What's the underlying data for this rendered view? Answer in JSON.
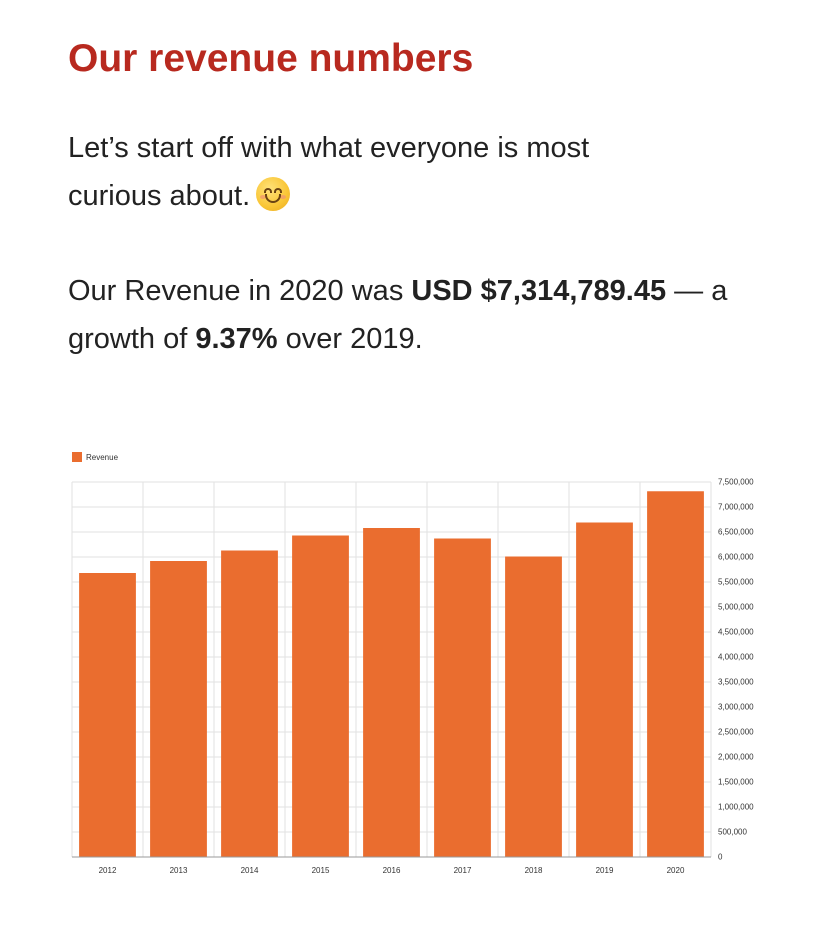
{
  "heading": "Our revenue numbers",
  "intro": {
    "text": "Let’s start off with what everyone is most curious about.",
    "emoji": "smiling-face-icon"
  },
  "summary": {
    "part1": "Our Revenue in 2020 was ",
    "amount": "USD $7,314,789.45",
    "part2": " — a growth of ",
    "growth": "9.37%",
    "part3": " over 2019."
  },
  "colors": {
    "heading": "#b8291f",
    "bar": "#ea6d2f",
    "grid": "#e2e2e2",
    "text": "#222222"
  },
  "chart_data": {
    "type": "bar",
    "categories": [
      "2012",
      "2013",
      "2014",
      "2015",
      "2016",
      "2017",
      "2018",
      "2019",
      "2020"
    ],
    "series": [
      {
        "name": "Revenue",
        "values": [
          5680000,
          5920000,
          6130000,
          6430000,
          6580000,
          6370000,
          6010000,
          6690000,
          7314789.45
        ]
      }
    ],
    "yticks": [
      "0",
      "500,000",
      "1,000,000",
      "1,500,000",
      "2,000,000",
      "2,500,000",
      "3,000,000",
      "3,500,000",
      "4,000,000",
      "4,500,000",
      "5,000,000",
      "5,500,000",
      "6,000,000",
      "6,500,000",
      "7,000,000",
      "7,500,000"
    ],
    "ylim": [
      0,
      7500000
    ],
    "yaxis_side": "right",
    "legend": "top-left",
    "grid": true
  }
}
